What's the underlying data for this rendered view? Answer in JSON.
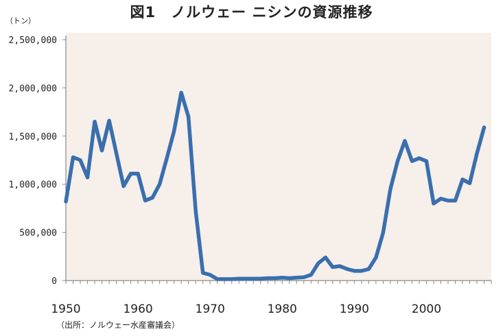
{
  "chart_data": {
    "type": "line",
    "title": "図1　ノルウェー ニシンの資源推移",
    "ylabel": "（トン）",
    "xlabel": "",
    "source": "（出所：ノルウェー水産審議会）",
    "xlim": [
      1950,
      2009
    ],
    "ylim": [
      0,
      2500000
    ],
    "yticks": [
      "2,500,000",
      "2,000,000",
      "1,500,000",
      "1,000,000",
      "500,000",
      "0"
    ],
    "ytick_values": [
      2500000,
      2000000,
      1500000,
      1000000,
      500000,
      0
    ],
    "xticks": [
      "1950",
      "1960",
      "1970",
      "1980",
      "1990",
      "2000"
    ],
    "xtick_values": [
      1950,
      1960,
      1970,
      1980,
      1990,
      2000
    ],
    "grid": false,
    "colors": {
      "line": "#3a6fae",
      "plot_bg": "#f6efea"
    },
    "series": [
      {
        "x": [
          1950,
          1951,
          1952,
          1953,
          1954,
          1955,
          1956,
          1957,
          1958,
          1959,
          1960,
          1961,
          1962,
          1963,
          1964,
          1965,
          1966,
          1967,
          1968,
          1969,
          1970,
          1971,
          1972,
          1973,
          1974,
          1975,
          1976,
          1977,
          1978,
          1979,
          1980,
          1981,
          1982,
          1983,
          1984,
          1985,
          1986,
          1987,
          1988,
          1989,
          1990,
          1991,
          1992,
          1993,
          1994,
          1995,
          1996,
          1997,
          1998,
          1999,
          2000,
          2001,
          2002,
          2003,
          2004,
          2005,
          2006,
          2007,
          2008
        ],
        "values": [
          820000,
          1280000,
          1250000,
          1070000,
          1650000,
          1350000,
          1660000,
          1320000,
          980000,
          1110000,
          1110000,
          830000,
          860000,
          1000000,
          1270000,
          1550000,
          1950000,
          1700000,
          720000,
          80000,
          60000,
          15000,
          15000,
          15000,
          20000,
          20000,
          20000,
          20000,
          25000,
          25000,
          30000,
          25000,
          30000,
          35000,
          60000,
          180000,
          240000,
          140000,
          150000,
          120000,
          100000,
          100000,
          120000,
          240000,
          500000,
          950000,
          1240000,
          1450000,
          1240000,
          1270000,
          1240000,
          800000,
          850000,
          830000,
          830000,
          1050000,
          1010000,
          1320000,
          1590000
        ]
      }
    ]
  }
}
